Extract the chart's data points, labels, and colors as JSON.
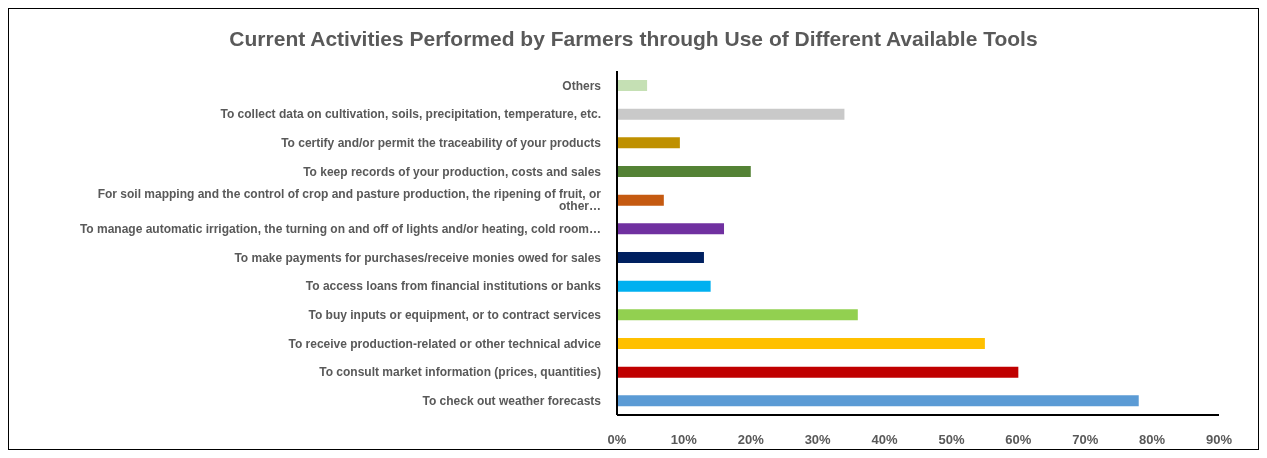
{
  "chart_data": {
    "type": "bar",
    "orientation": "horizontal",
    "title": "Current Activities Performed by Farmers through Use of Different Available Tools",
    "categories": [
      "Others",
      "To collect data on cultivation, soils, precipitation, temperature, etc.",
      "To certify and/or permit the traceability of your products",
      "To keep records of your production, costs and sales",
      "For soil mapping and the control of crop and pasture production, the ripening of fruit, or other…",
      "To manage automatic irrigation, the turning on and off of lights and/or heating, cold room…",
      "To make payments for purchases/receive monies owed for sales",
      "To access loans from financial institutions or banks",
      "To buy inputs or equipment, or to contract services",
      "To receive production-related or other technical advice",
      "To consult market information (prices, quantities)",
      "To check out weather forecasts"
    ],
    "values": [
      4.5,
      34,
      9.4,
      20,
      7,
      16,
      13,
      14,
      36,
      55,
      60,
      78
    ],
    "colors": [
      "#c5e0b4",
      "#c9c9c9",
      "#bf9000",
      "#548235",
      "#c55a11",
      "#7030a0",
      "#002060",
      "#00b0f0",
      "#92d050",
      "#ffc000",
      "#c00000",
      "#5b9bd5"
    ],
    "xlim": [
      0,
      90
    ],
    "xticks": [
      {
        "value": 0,
        "label": "0%"
      },
      {
        "value": 10,
        "label": "10%"
      },
      {
        "value": 20,
        "label": "20%"
      },
      {
        "value": 30,
        "label": "30%"
      },
      {
        "value": 40,
        "label": "40%"
      },
      {
        "value": 50,
        "label": "50%"
      },
      {
        "value": 60,
        "label": "60%"
      },
      {
        "value": 70,
        "label": "70%"
      },
      {
        "value": 80,
        "label": "80%"
      },
      {
        "value": 90,
        "label": "90%"
      }
    ],
    "grid": false,
    "legend": false
  }
}
